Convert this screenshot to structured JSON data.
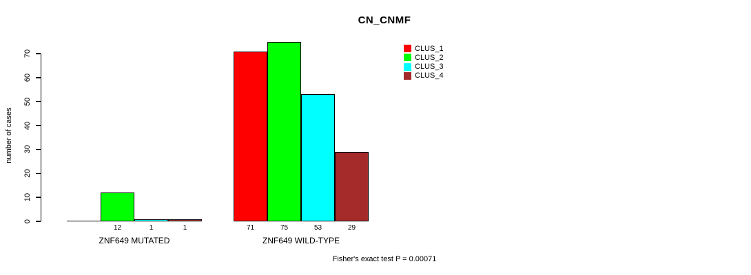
{
  "chart_data": {
    "type": "bar",
    "title": "CN_CNMF",
    "ylabel": "number of cases",
    "categories": [
      "ZNF649 MUTATED",
      "ZNF649 WILD-TYPE"
    ],
    "series": [
      {
        "name": "CLUS_1",
        "color": "#ff0000",
        "values": [
          0,
          71
        ]
      },
      {
        "name": "CLUS_2",
        "color": "#00ff00",
        "values": [
          12,
          75
        ]
      },
      {
        "name": "CLUS_3",
        "color": "#00ffff",
        "values": [
          1,
          53
        ]
      },
      {
        "name": "CLUS_4",
        "color": "#a52a2a",
        "values": [
          1,
          29
        ]
      }
    ],
    "ylim": [
      0,
      70
    ],
    "yticks": [
      0,
      10,
      20,
      30,
      40,
      50,
      60,
      70
    ],
    "grid": false,
    "legend_position": "top-right",
    "bar_value_labels": {
      "show": true,
      "hide_zero": true
    },
    "annotation": "Fisher's exact test P = 0.00071"
  }
}
